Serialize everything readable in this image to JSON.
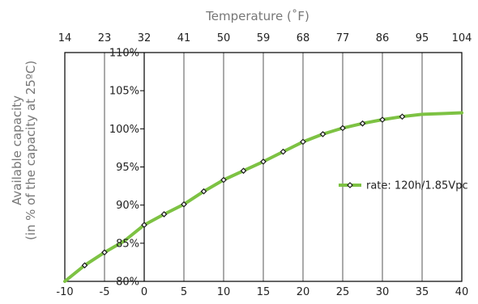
{
  "chart_data": {
    "type": "line",
    "title": "",
    "top_axis_label": "Temperature (˚F)",
    "ylabel_line1": "Available capacity",
    "ylabel_line2": "(in % of the capacity at 25ºC)",
    "x_ticks": [
      "-10",
      "-5",
      "0",
      "5",
      "10",
      "15",
      "20",
      "25",
      "30",
      "35",
      "40"
    ],
    "x_tick_values": [
      -10,
      -5,
      0,
      5,
      10,
      15,
      20,
      25,
      30,
      35,
      40
    ],
    "top_ticks": [
      "14",
      "23",
      "32",
      "41",
      "50",
      "59",
      "68",
      "77",
      "86",
      "95",
      "104"
    ],
    "y_ticks": [
      "80%",
      "85%",
      "90%",
      "95%",
      "100%",
      "105%",
      "110%"
    ],
    "y_tick_values": [
      80,
      85,
      90,
      95,
      100,
      105,
      110
    ],
    "xlim": [
      -10,
      40
    ],
    "ylim": [
      80,
      110
    ],
    "grid": "vertical",
    "legend_position": "right",
    "colors": {
      "line": "#7dc243",
      "marker": "#1a1a1a",
      "grid": "#555555",
      "axis": "#000000"
    },
    "series": [
      {
        "name": "rate: 120h/1.85Vpc",
        "curve_x": [
          -10,
          -7.5,
          -5,
          -2.5,
          0,
          2.5,
          5,
          7.5,
          10,
          12.5,
          15,
          17.5,
          20,
          22.5,
          25,
          27.5,
          30,
          32.5,
          35,
          37.5,
          40
        ],
        "curve_y": [
          80.0,
          82.1,
          83.8,
          85.3,
          87.4,
          88.8,
          90.1,
          91.8,
          93.3,
          94.5,
          95.7,
          97.0,
          98.3,
          99.3,
          100.1,
          100.7,
          101.2,
          101.6,
          101.9,
          102.0,
          102.1
        ],
        "marker_x": [
          -7.5,
          -5,
          0,
          2.5,
          5,
          7.5,
          10,
          12.5,
          15,
          17.5,
          20,
          22.5,
          25,
          27.5,
          30,
          32.5
        ],
        "marker_y": [
          82.1,
          83.8,
          87.4,
          88.8,
          90.1,
          91.8,
          93.3,
          94.5,
          95.7,
          97.0,
          98.3,
          99.3,
          100.1,
          100.7,
          101.2,
          101.6
        ]
      }
    ]
  }
}
